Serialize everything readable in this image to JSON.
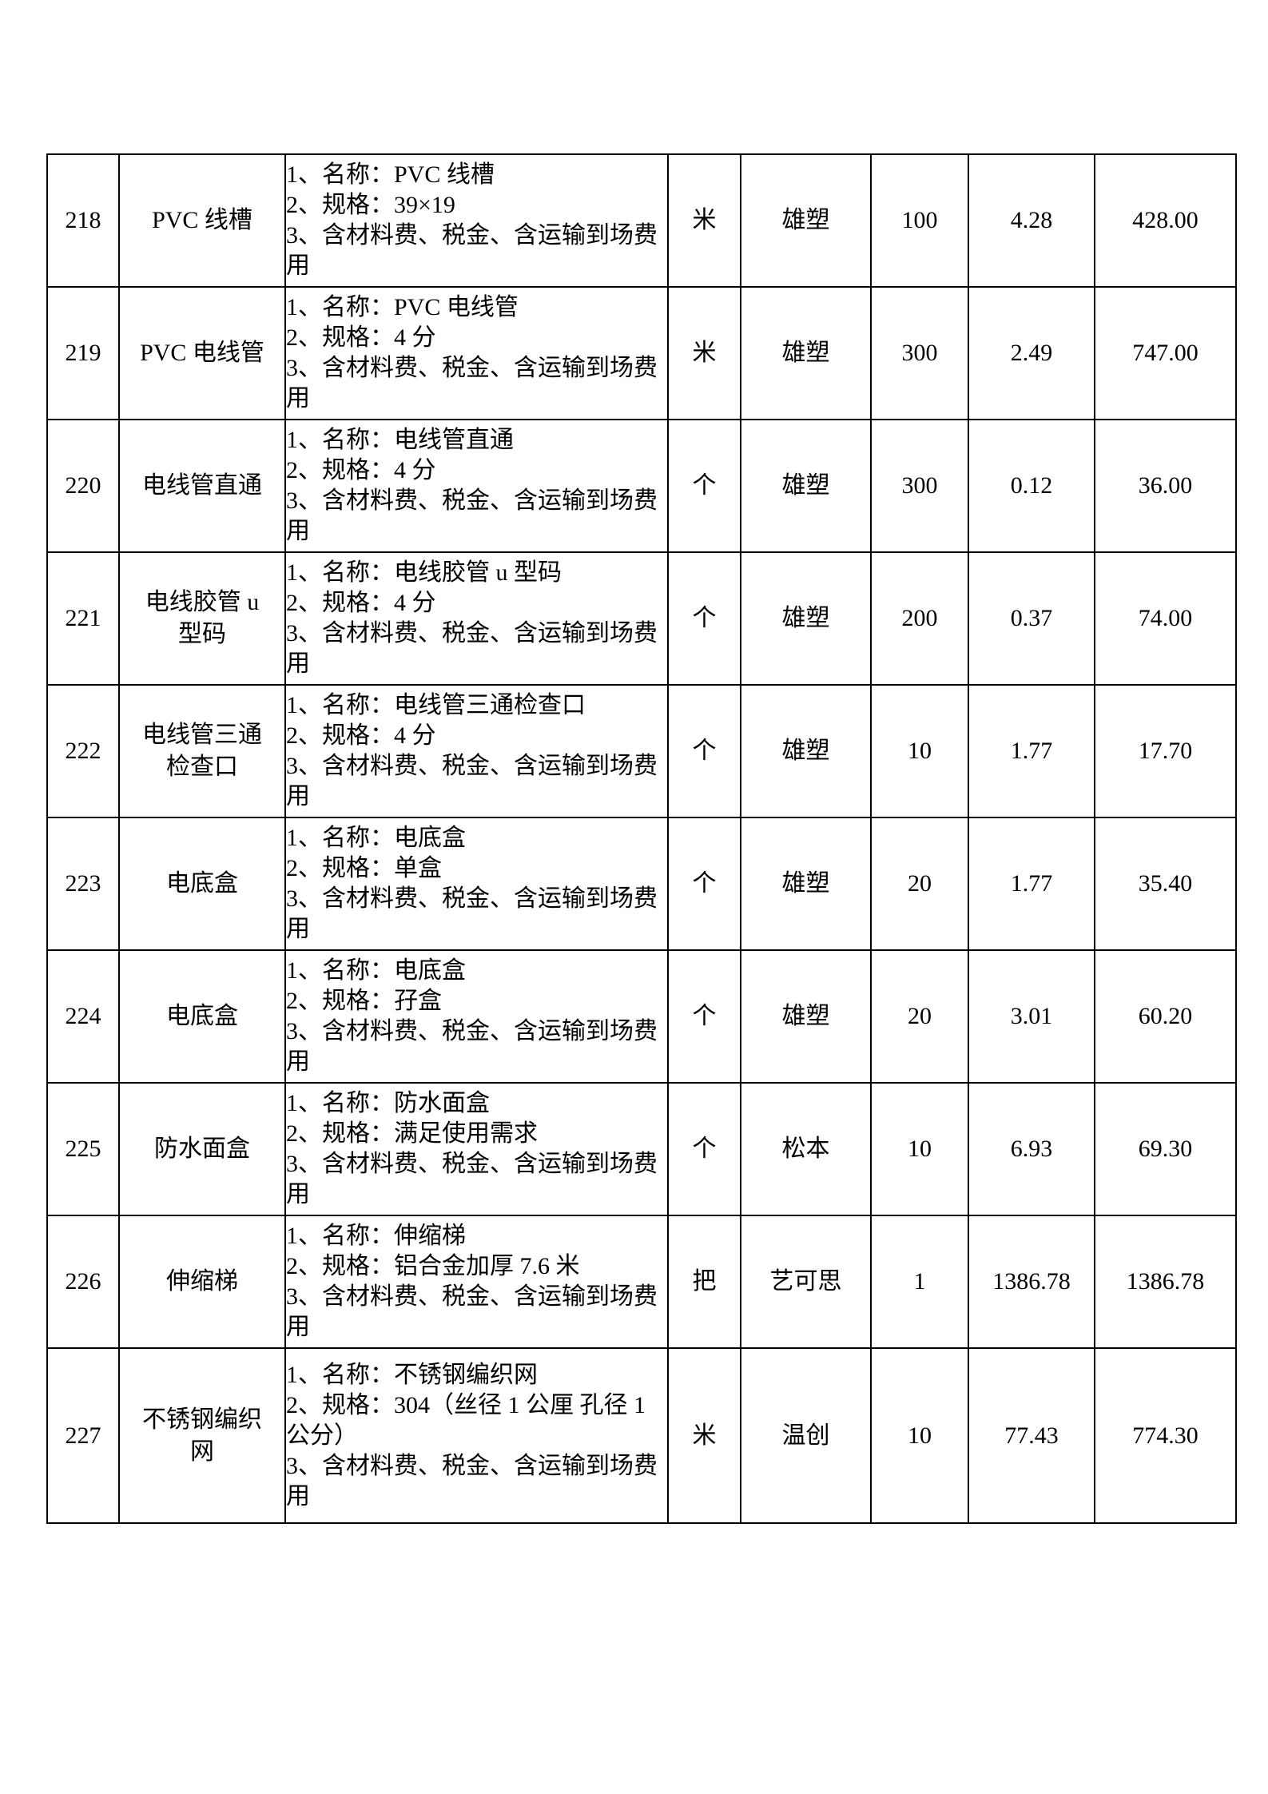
{
  "table": {
    "columns": [
      {
        "key": "no",
        "cell_name": "row-no-cell",
        "style": "center"
      },
      {
        "key": "name",
        "cell_name": "item-name-cell",
        "style": "center"
      },
      {
        "key": "desc",
        "cell_name": "spec-desc-cell",
        "style": "desc"
      },
      {
        "key": "unit",
        "cell_name": "unit-cell",
        "style": "center"
      },
      {
        "key": "brand",
        "cell_name": "brand-cell",
        "style": "center"
      },
      {
        "key": "qty",
        "cell_name": "quantity-cell",
        "style": "center"
      },
      {
        "key": "price",
        "cell_name": "unit-price-cell",
        "style": "center"
      },
      {
        "key": "total",
        "cell_name": "total-price-cell",
        "style": "center"
      }
    ],
    "rows": [
      {
        "no": "218",
        "name": "PVC 线槽",
        "desc": "1、名称：PVC 线槽\n2、规格：39×19\n3、含材料费、税金、含运输到场费用",
        "unit": "米",
        "brand": "雄塑",
        "qty": "100",
        "price": "4.28",
        "total": "428.00"
      },
      {
        "no": "219",
        "name": "PVC 电线管",
        "desc": "1、名称：PVC 电线管\n2、规格：4 分\n3、含材料费、税金、含运输到场费用",
        "unit": "米",
        "brand": "雄塑",
        "qty": "300",
        "price": "2.49",
        "total": "747.00"
      },
      {
        "no": "220",
        "name": "电线管直通",
        "desc": "1、名称：电线管直通\n2、规格：4 分\n3、含材料费、税金、含运输到场费用",
        "unit": "个",
        "brand": "雄塑",
        "qty": "300",
        "price": "0.12",
        "total": "36.00"
      },
      {
        "no": "221",
        "name": "电线胶管 u\n型码",
        "desc": "1、名称：电线胶管 u 型码\n2、规格：4 分\n3、含材料费、税金、含运输到场费用",
        "unit": "个",
        "brand": "雄塑",
        "qty": "200",
        "price": "0.37",
        "total": "74.00"
      },
      {
        "no": "222",
        "name": "电线管三通\n检查口",
        "desc": "1、名称：电线管三通检查口\n2、规格：4 分\n3、含材料费、税金、含运输到场费用",
        "unit": "个",
        "brand": "雄塑",
        "qty": "10",
        "price": "1.77",
        "total": "17.70"
      },
      {
        "no": "223",
        "name": "电底盒",
        "desc": "1、名称：电底盒\n2、规格：单盒\n3、含材料费、税金、含运输到场费用",
        "unit": "个",
        "brand": "雄塑",
        "qty": "20",
        "price": "1.77",
        "total": "35.40"
      },
      {
        "no": "224",
        "name": "电底盒",
        "desc": "1、名称：电底盒\n2、规格：孖盒\n3、含材料费、税金、含运输到场费用",
        "unit": "个",
        "brand": "雄塑",
        "qty": "20",
        "price": "3.01",
        "total": "60.20"
      },
      {
        "no": "225",
        "name": "防水面盒",
        "desc": "1、名称：防水面盒\n2、规格：满足使用需求\n3、含材料费、税金、含运输到场费用",
        "unit": "个",
        "brand": "松本",
        "qty": "10",
        "price": "6.93",
        "total": "69.30"
      },
      {
        "no": "226",
        "name": "伸缩梯",
        "desc": "1、名称：伸缩梯\n2、规格：铝合金加厚 7.6 米\n3、含材料费、税金、含运输到场费用",
        "unit": "把",
        "brand": "艺可思",
        "qty": "1",
        "price": "1386.78",
        "total": "1386.78"
      },
      {
        "no": "227",
        "name": "不锈钢编织\n网",
        "desc": "1、名称：不锈钢编织网\n2、规格：304（丝径 1 公厘 孔径 1\n公分）\n3、含材料费、税金、含运输到场费用",
        "unit": "米",
        "brand": "温创",
        "qty": "10",
        "price": "77.43",
        "total": "774.30",
        "tall": true
      }
    ]
  }
}
